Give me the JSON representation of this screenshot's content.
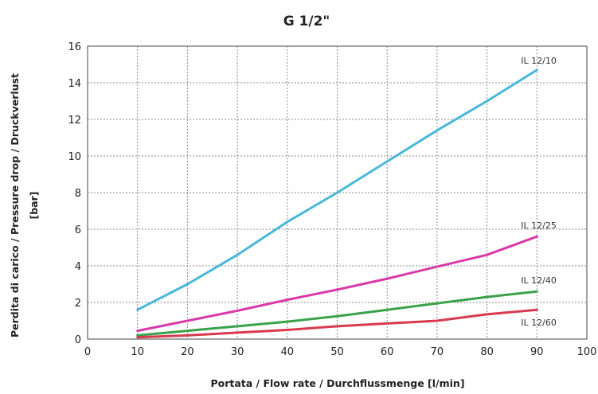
{
  "chart_data": {
    "type": "line",
    "title": "G 1/2\"",
    "xlabel": "Portata / Flow rate /  Durchflussmenge [l/min]",
    "ylabel_lines": [
      "Perdita di carico / Pressure drop / Druckverlust",
      "[bar]"
    ],
    "xlim": [
      0,
      100
    ],
    "ylim": [
      0,
      16
    ],
    "xticks": [
      "0",
      "10",
      "20",
      "30",
      "40",
      "50",
      "60",
      "70",
      "80",
      "90",
      "100"
    ],
    "yticks": [
      "0",
      "2",
      "4",
      "6",
      "8",
      "10",
      "12",
      "14",
      "16"
    ],
    "grid": true,
    "series": [
      {
        "name": "IL 12/10",
        "color": "#4ab8d8",
        "x": [
          10,
          20,
          30,
          40,
          50,
          60,
          70,
          80,
          90
        ],
        "y": [
          1.6,
          3.0,
          4.6,
          6.4,
          8.0,
          9.7,
          11.4,
          13.0,
          14.7
        ]
      },
      {
        "name": "IL 12/25",
        "color": "#d83aa8",
        "x": [
          10,
          20,
          30,
          40,
          50,
          60,
          70,
          80,
          90
        ],
        "y": [
          0.45,
          1.0,
          1.55,
          2.15,
          2.7,
          3.3,
          3.95,
          4.6,
          5.6
        ]
      },
      {
        "name": "IL 12/40",
        "color": "#3aa24a",
        "x": [
          10,
          20,
          30,
          40,
          50,
          60,
          70,
          80,
          90
        ],
        "y": [
          0.2,
          0.45,
          0.7,
          0.95,
          1.25,
          1.6,
          1.95,
          2.3,
          2.6
        ]
      },
      {
        "name": "IL 12/60",
        "color": "#d83a50",
        "x": [
          10,
          20,
          30,
          40,
          50,
          60,
          70,
          80,
          90
        ],
        "y": [
          0.1,
          0.2,
          0.35,
          0.5,
          0.7,
          0.85,
          1.0,
          1.35,
          1.6
        ]
      }
    ]
  }
}
